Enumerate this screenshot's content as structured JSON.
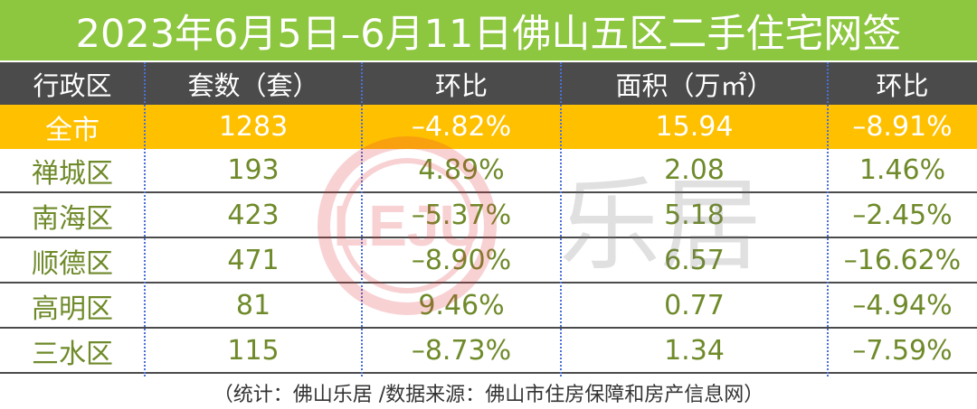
{
  "title": "2023年6月5日–6月11日佛山五区二手住宅网签",
  "columns": [
    "行政区",
    "套数（套）",
    "环比",
    "面积（万㎡）",
    "环比"
  ],
  "rows": [
    {
      "district": "全市",
      "units": "1283",
      "units_mom": "–4.82%",
      "area": "15.94",
      "area_mom": "–8.91%"
    },
    {
      "district": "禅城区",
      "units": "193",
      "units_mom": "4.89%",
      "area": "2.08",
      "area_mom": "1.46%"
    },
    {
      "district": "南海区",
      "units": "423",
      "units_mom": "–5.37%",
      "area": "5.18",
      "area_mom": "–2.45%"
    },
    {
      "district": "顺德区",
      "units": "471",
      "units_mom": "–8.90%",
      "area": "6.57",
      "area_mom": "–16.62%"
    },
    {
      "district": "高明区",
      "units": "81",
      "units_mom": "9.46%",
      "area": "0.77",
      "area_mom": "–4.94%"
    },
    {
      "district": "三水区",
      "units": "115",
      "units_mom": "–8.73%",
      "area": "1.34",
      "area_mom": "–7.59%"
    }
  ],
  "footer": "（统计：佛山乐居 /数据来源：佛山市住房保障和房产信息网）",
  "watermark": {
    "logo_text": "LEJU",
    "brand_text": "乐居"
  },
  "colors": {
    "title_bg": "#8dc63f",
    "header_bg": "#4b4b4b",
    "highlight_bg": "#ffc000",
    "value_text": "#6f8a2a",
    "divider": "#4a6fd8"
  }
}
